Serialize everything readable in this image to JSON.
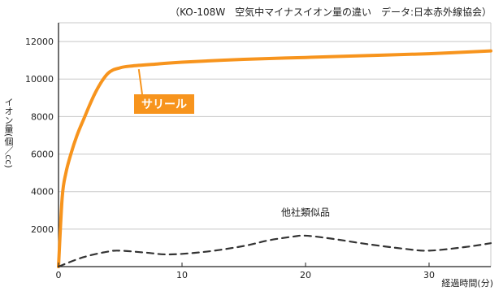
{
  "chart_data": {
    "type": "line",
    "title": "（KO-108W　空気中マイナスイオン量の違い　データ:日本赤外線協会）",
    "xlabel": "経過時間(分)",
    "ylabel": "イオン量(個／cc)",
    "xlim": [
      0,
      35
    ],
    "ylim": [
      0,
      13000
    ],
    "x_ticks": [
      0,
      10,
      20,
      30
    ],
    "y_ticks": [
      2000,
      4000,
      6000,
      8000,
      10000,
      12000
    ],
    "grid": "horizontal",
    "series": [
      {
        "name": "サリール",
        "color": "#f7941d",
        "style": "solid",
        "x": [
          0,
          0.3,
          0.6,
          1,
          1.5,
          2,
          3,
          4,
          5,
          6,
          8,
          10,
          15,
          20,
          25,
          30,
          35
        ],
        "y": [
          0,
          3700,
          5000,
          6000,
          7000,
          7800,
          9300,
          10300,
          10600,
          10700,
          10800,
          10900,
          11050,
          11150,
          11250,
          11350,
          11500
        ]
      },
      {
        "name": "他社類似品",
        "color": "#333333",
        "style": "dashed",
        "x": [
          0,
          2,
          4,
          5,
          7,
          9,
          12,
          15,
          17,
          19,
          20,
          22,
          25,
          28,
          30,
          33,
          35
        ],
        "y": [
          0,
          500,
          800,
          850,
          750,
          650,
          800,
          1100,
          1400,
          1600,
          1650,
          1500,
          1200,
          950,
          850,
          1050,
          1250
        ]
      }
    ]
  }
}
